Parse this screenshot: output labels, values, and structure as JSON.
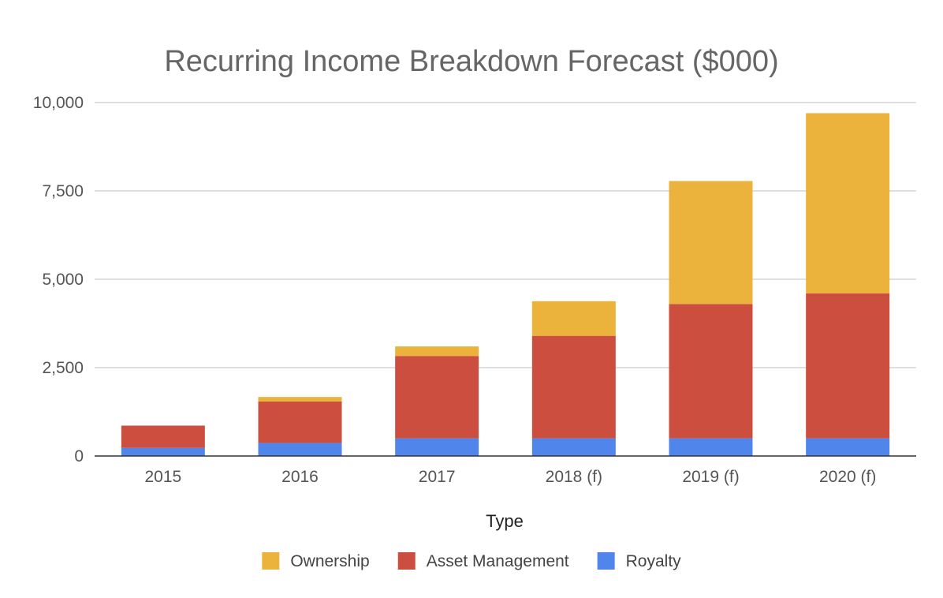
{
  "chart_data": {
    "type": "bar",
    "stacked": true,
    "title": "Recurring Income Breakdown Forecast ($000)",
    "xlabel": "Type",
    "ylabel": "",
    "ylim": [
      0,
      10000
    ],
    "yticks": [
      0,
      2500,
      5000,
      7500,
      10000
    ],
    "ytick_labels": [
      "0",
      "2,500",
      "5,000",
      "7,500",
      "10,000"
    ],
    "grid": true,
    "legend_position": "bottom",
    "categories": [
      "2015",
      "2016",
      "2017",
      "2018 (f)",
      "2019 (f)",
      "2020 (f)"
    ],
    "series": [
      {
        "name": "Royalty",
        "color": "#5085EC",
        "values": [
          230,
          370,
          500,
          500,
          500,
          500
        ]
      },
      {
        "name": "Asset Management",
        "color": "#CC4E3F",
        "values": [
          630,
          1170,
          2330,
          2900,
          3800,
          4100
        ]
      },
      {
        "name": "Ownership",
        "color": "#EBB33C",
        "values": [
          0,
          130,
          270,
          980,
          3480,
          5100
        ]
      }
    ],
    "legend_order": [
      "Ownership",
      "Asset Management",
      "Royalty"
    ]
  }
}
